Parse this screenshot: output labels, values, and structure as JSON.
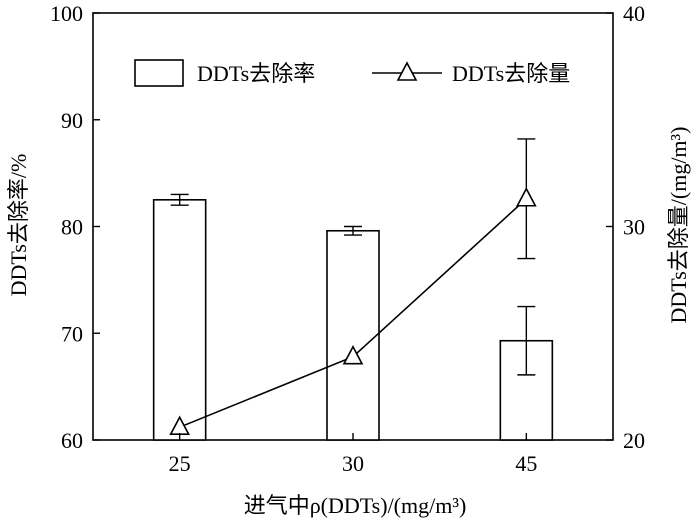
{
  "chart_data": {
    "type": "bar",
    "categories": [
      "25",
      "30",
      "45"
    ],
    "xlabel": "进气中ρ(DDTs)/(mg/m³)",
    "ylabel": "DDTs去除率/%",
    "y2label": "DDTs去除量/(mg/m³)",
    "ylim": [
      60,
      100
    ],
    "y2lim": [
      20,
      40
    ],
    "yticks": [
      "60",
      "70",
      "80",
      "90",
      "100"
    ],
    "y2ticks": [
      "20",
      "30",
      "40"
    ],
    "legend_position": "top",
    "grid": false,
    "series": [
      {
        "name": "DDTs去除率",
        "type": "bar",
        "axis": "left",
        "values": [
          82.5,
          79.6,
          69.3
        ],
        "errors": [
          0.5,
          0.4,
          3.2
        ],
        "color": "#ffffff",
        "edge_color": "#000000"
      },
      {
        "name": "DDTs去除量",
        "type": "line",
        "axis": "right",
        "marker": "open-triangle",
        "values": [
          20.6,
          23.9,
          31.3
        ],
        "errors": [
          0,
          0,
          2.8
        ],
        "color": "#000000"
      }
    ]
  }
}
